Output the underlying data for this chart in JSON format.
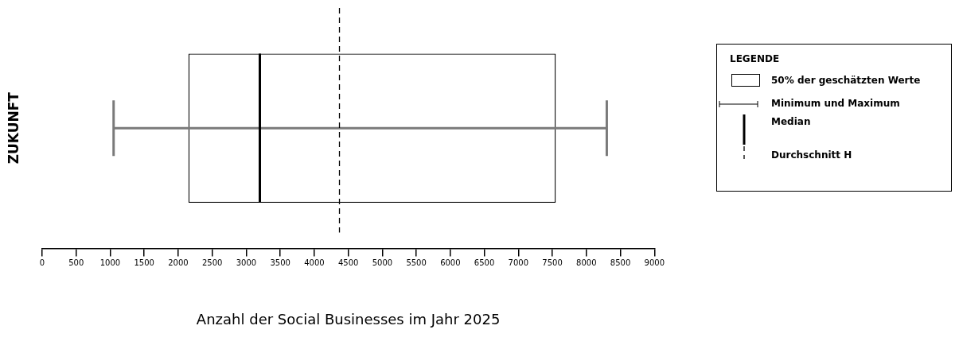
{
  "chart_data": {
    "type": "box",
    "orientation": "horizontal",
    "categories": [
      null
    ],
    "ylabel": "ZUKUNFT",
    "boxes": [
      {
        "low": 1050,
        "q1": 2150,
        "median": 3200,
        "q3": 7550,
        "high": 8300
      }
    ],
    "ref_lines": [
      {
        "axis": "x",
        "value": 4370,
        "line_style": "dashed",
        "color": "#000000"
      }
    ],
    "xlim": [
      0,
      9000
    ],
    "xticks": [
      0,
      500,
      1000,
      1500,
      2000,
      2500,
      3000,
      3500,
      4000,
      4500,
      5000,
      5500,
      6000,
      6500,
      7000,
      7500,
      8000,
      8500,
      9000
    ],
    "xlabel": "Anzahl der Social Businesses im Jahr 2025",
    "grid": false,
    "legend_title": "LEGENDE",
    "annotations": [
      "50% der geschätzten Werte",
      "Minimum und Maximum",
      "Median",
      "Durchschnitt H"
    ]
  }
}
